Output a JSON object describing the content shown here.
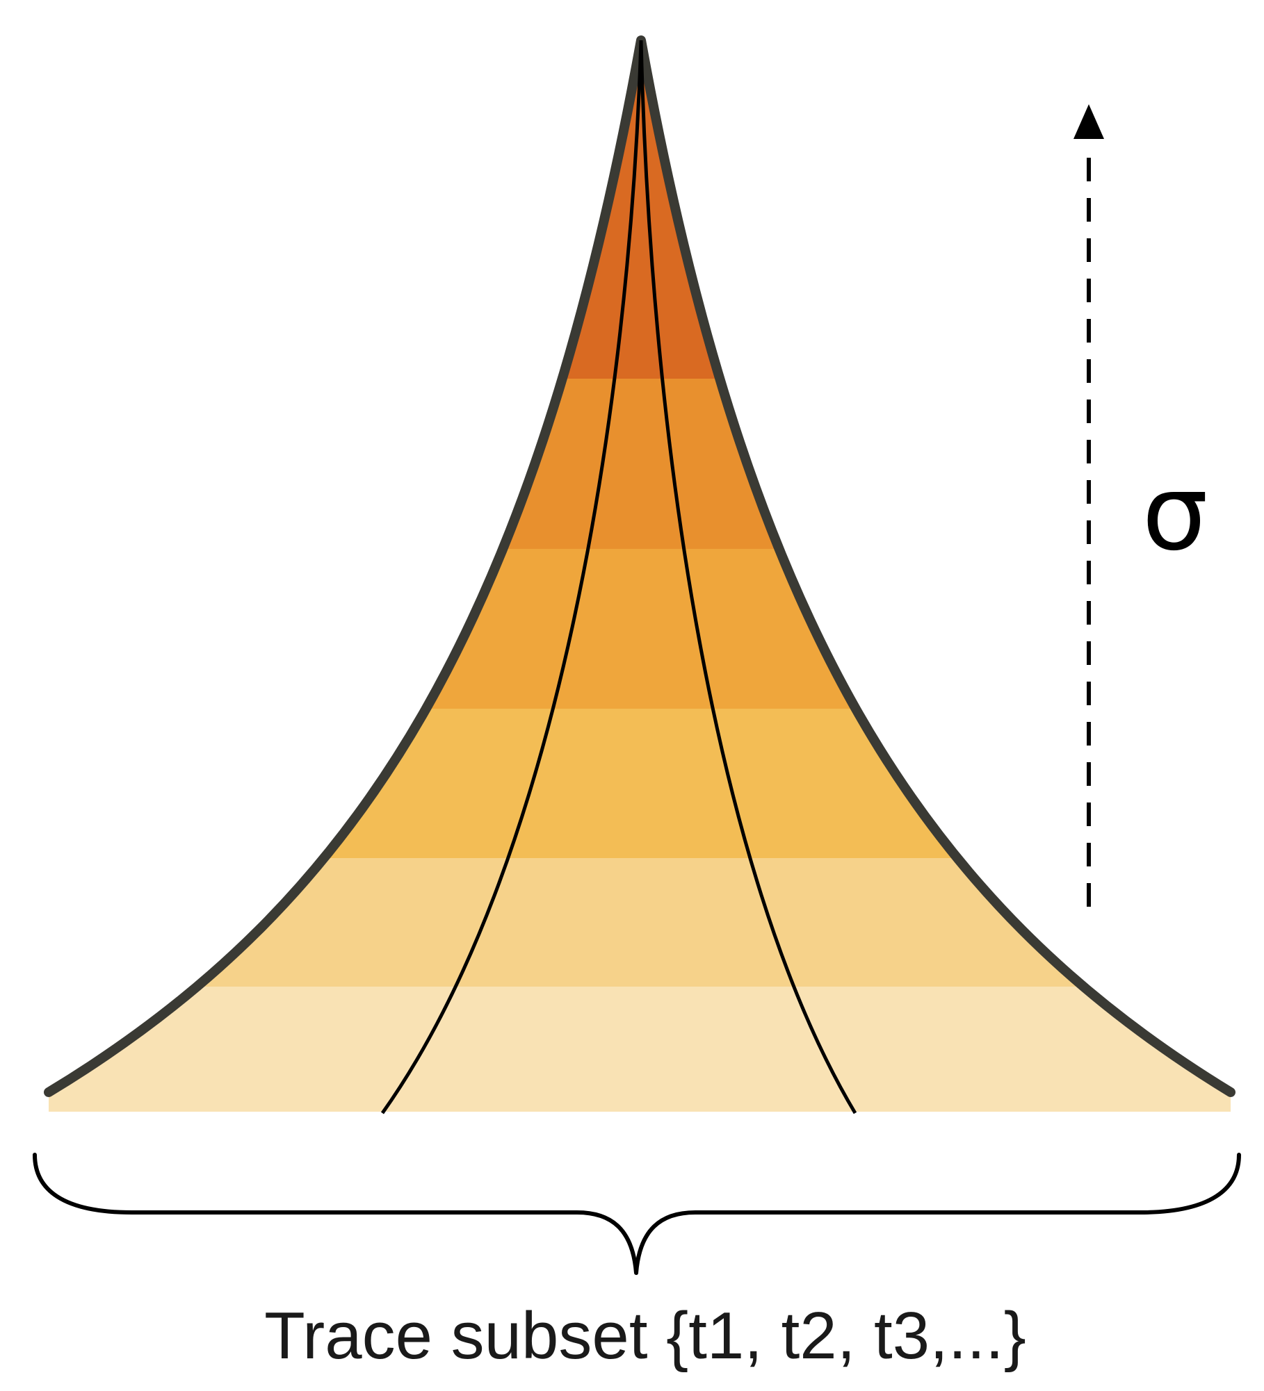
{
  "diagram": {
    "axis_symbol": "σ",
    "caption": "Trace subset {t1, t2, t3,...}",
    "band_colors": [
      "#d96a22",
      "#e07a25",
      "#e8902e",
      "#efa63c",
      "#f3bd55",
      "#f6d28a",
      "#f9e2b4"
    ],
    "outline_color": "#3a3a34",
    "line_color": "#000000"
  }
}
